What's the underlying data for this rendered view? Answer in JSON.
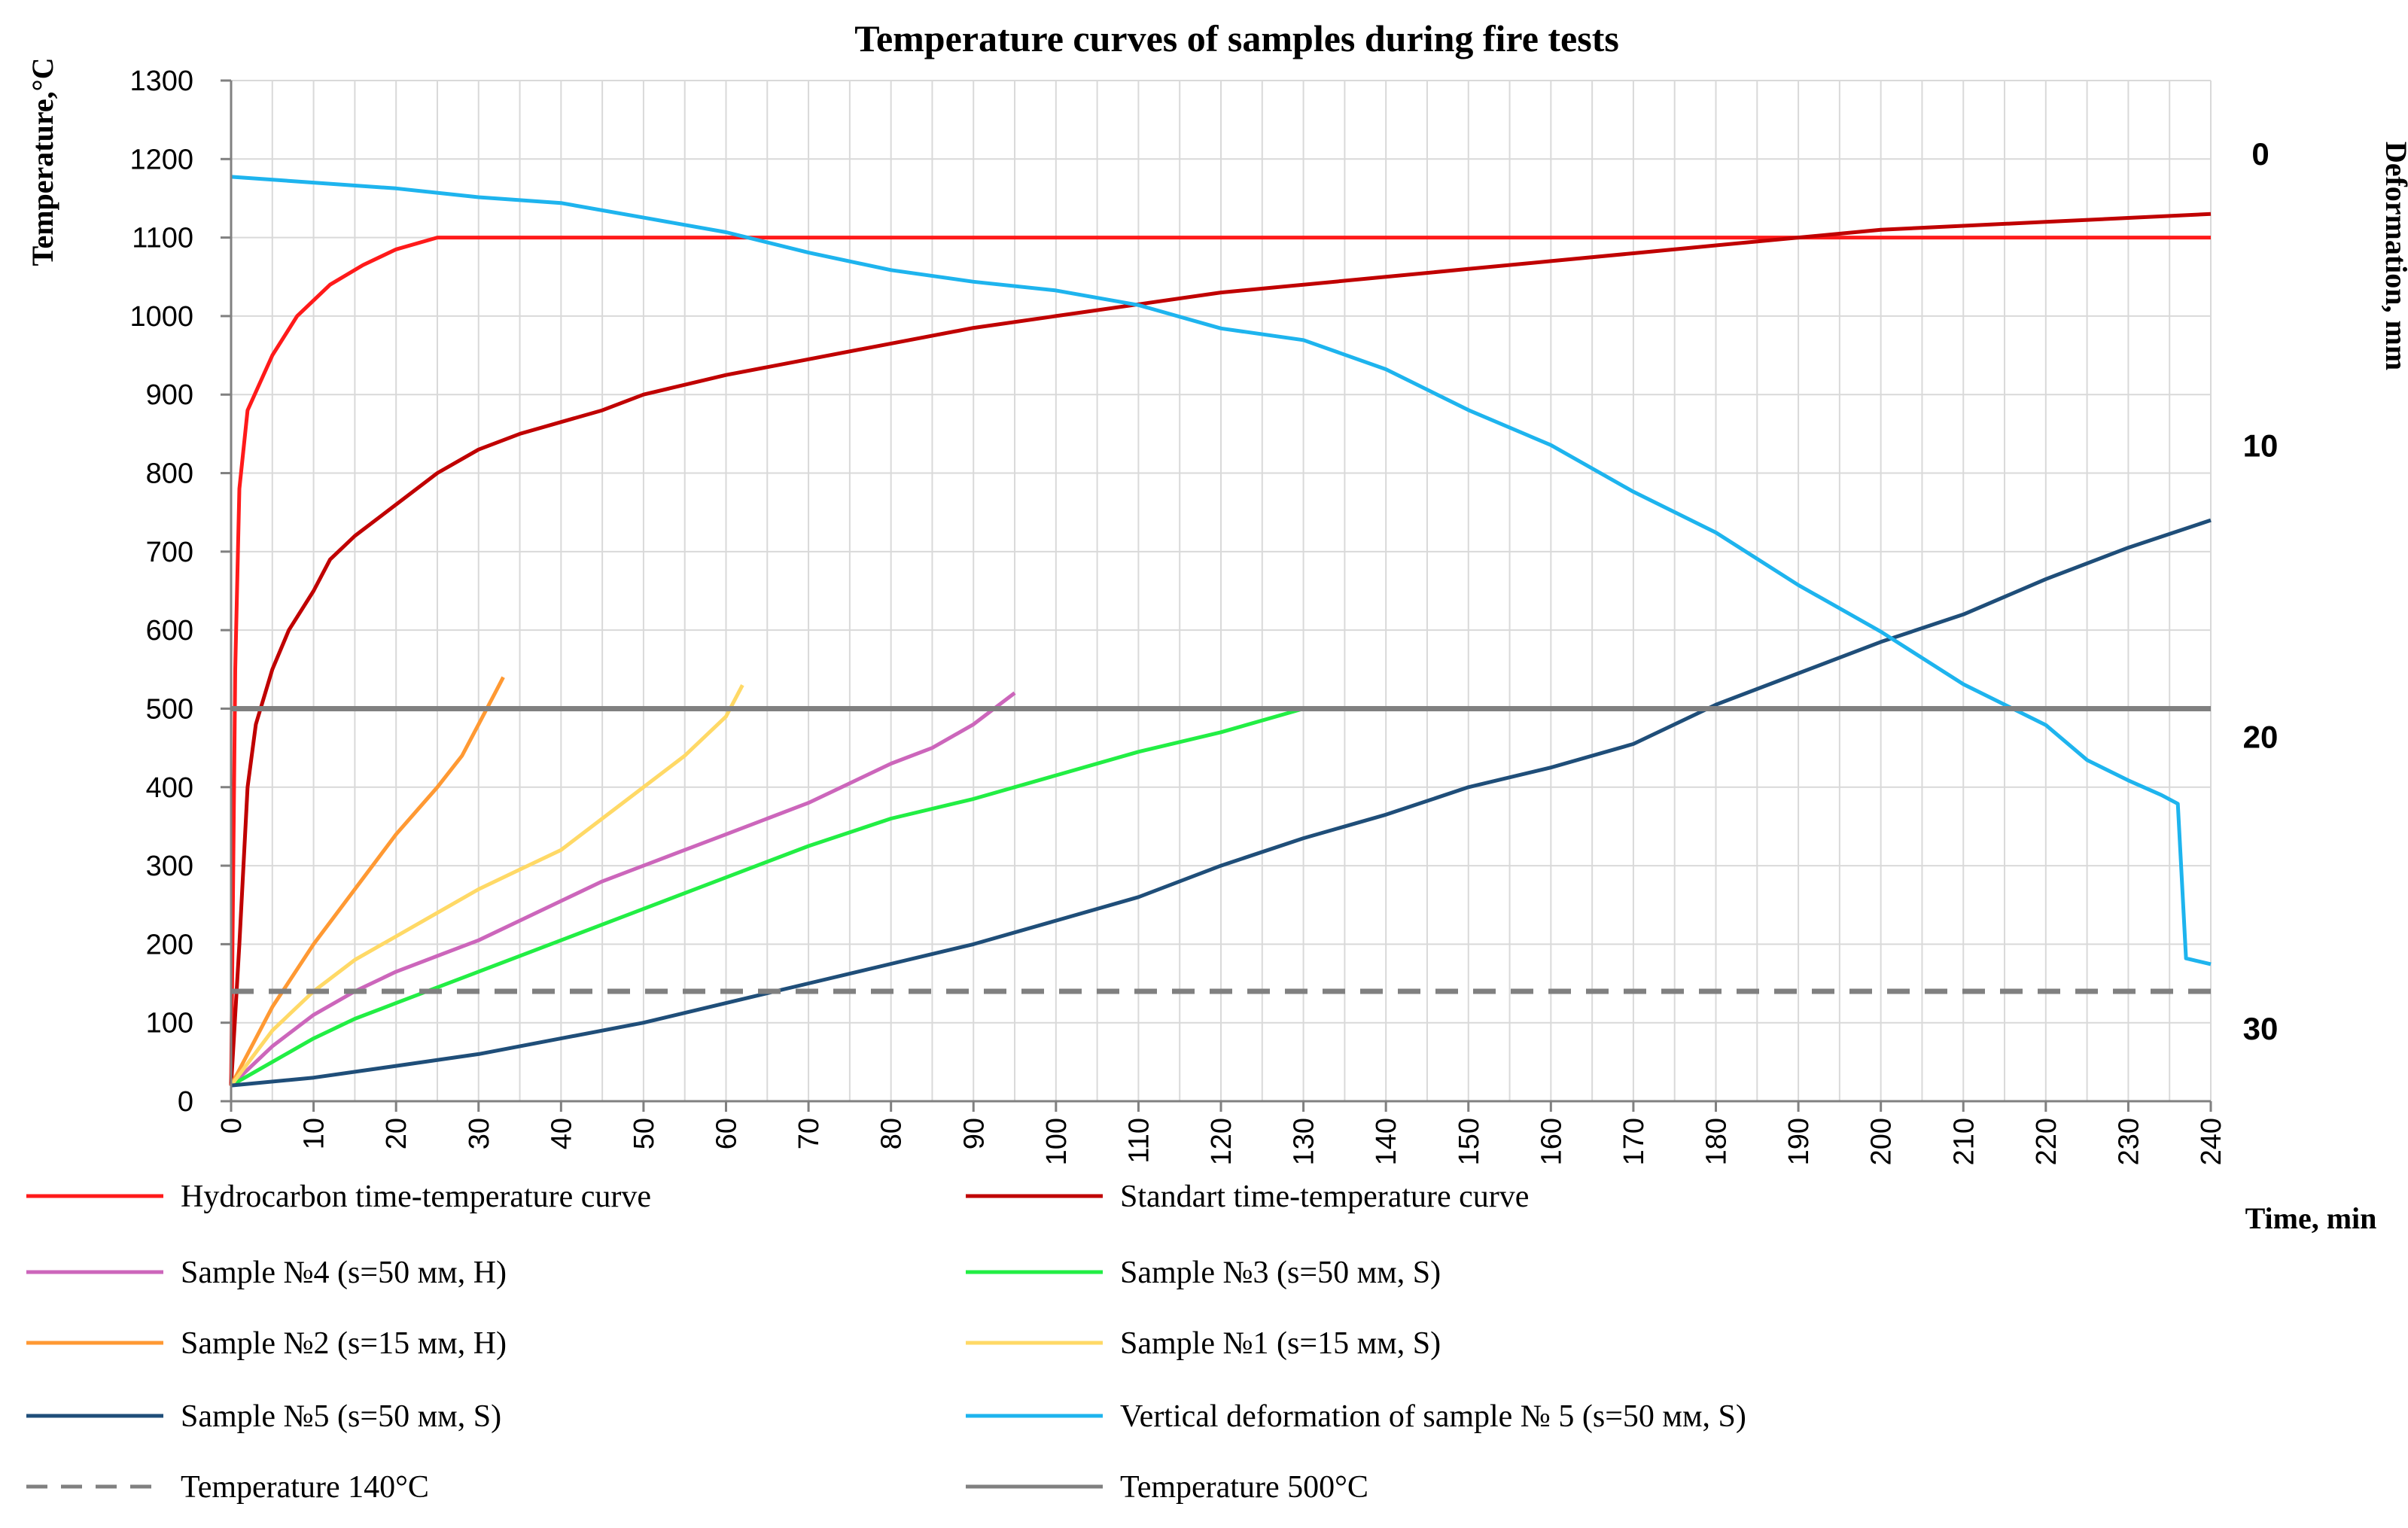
{
  "chart_data": {
    "type": "line",
    "title": "Temperature curves of samples during fire tests",
    "xlabel": "Time, min",
    "ylabel": "Temperature,°C",
    "y2label": "Deformation, mm",
    "xlim": [
      0,
      240
    ],
    "ylim": [
      0,
      1300
    ],
    "y2lim": [
      32.5,
      -2.5
    ],
    "grid": true,
    "legend_position": "bottom",
    "x_ticks": [
      "0",
      "10",
      "20",
      "30",
      "40",
      "50",
      "60",
      "70",
      "80",
      "90",
      "100",
      "110",
      "120",
      "130",
      "140",
      "150",
      "160",
      "170",
      "180",
      "190",
      "200",
      "210",
      "220",
      "230",
      "240"
    ],
    "y_ticks": [
      "0",
      "100",
      "200",
      "300",
      "400",
      "500",
      "600",
      "700",
      "800",
      "900",
      "1000",
      "1100",
      "1200",
      "1300"
    ],
    "y2_ticks": [
      "0",
      "10",
      "20",
      "30"
    ],
    "series": [
      {
        "name": "Hydrocarbon time-temperature curve",
        "color": "#ff1a1a",
        "axis": "left",
        "dash": false,
        "points": [
          [
            0,
            20
          ],
          [
            0.5,
            550
          ],
          [
            1,
            780
          ],
          [
            2,
            880
          ],
          [
            5,
            950
          ],
          [
            8,
            1000
          ],
          [
            12,
            1040
          ],
          [
            16,
            1065
          ],
          [
            20,
            1085
          ],
          [
            25,
            1100
          ],
          [
            240,
            1100
          ]
        ]
      },
      {
        "name": "Standart time-temperature curve",
        "color": "#c00000",
        "axis": "left",
        "dash": false,
        "points": [
          [
            0,
            20
          ],
          [
            1,
            200
          ],
          [
            2,
            400
          ],
          [
            3,
            480
          ],
          [
            5,
            550
          ],
          [
            7,
            600
          ],
          [
            10,
            650
          ],
          [
            12,
            690
          ],
          [
            15,
            720
          ],
          [
            20,
            760
          ],
          [
            25,
            800
          ],
          [
            30,
            830
          ],
          [
            35,
            850
          ],
          [
            40,
            865
          ],
          [
            45,
            880
          ],
          [
            50,
            900
          ],
          [
            60,
            925
          ],
          [
            70,
            945
          ],
          [
            80,
            965
          ],
          [
            90,
            985
          ],
          [
            100,
            1000
          ],
          [
            110,
            1015
          ],
          [
            120,
            1030
          ],
          [
            130,
            1040
          ],
          [
            140,
            1050
          ],
          [
            150,
            1060
          ],
          [
            160,
            1070
          ],
          [
            170,
            1080
          ],
          [
            180,
            1090
          ],
          [
            190,
            1100
          ],
          [
            200,
            1110
          ],
          [
            210,
            1115
          ],
          [
            220,
            1120
          ],
          [
            230,
            1125
          ],
          [
            240,
            1130
          ]
        ]
      },
      {
        "name": "Sample №4 (s=50 мм, H)",
        "color": "#cc66bb",
        "axis": "left",
        "dash": false,
        "points": [
          [
            0,
            20
          ],
          [
            5,
            70
          ],
          [
            10,
            110
          ],
          [
            15,
            140
          ],
          [
            20,
            165
          ],
          [
            25,
            185
          ],
          [
            30,
            205
          ],
          [
            35,
            230
          ],
          [
            40,
            255
          ],
          [
            45,
            280
          ],
          [
            50,
            300
          ],
          [
            55,
            320
          ],
          [
            60,
            340
          ],
          [
            65,
            360
          ],
          [
            70,
            380
          ],
          [
            75,
            405
          ],
          [
            80,
            430
          ],
          [
            85,
            450
          ],
          [
            90,
            480
          ],
          [
            95,
            520
          ]
        ]
      },
      {
        "name": "Sample №3 (s=50 мм, S)",
        "color": "#22ee44",
        "axis": "left",
        "dash": false,
        "points": [
          [
            0,
            20
          ],
          [
            5,
            50
          ],
          [
            10,
            80
          ],
          [
            15,
            105
          ],
          [
            20,
            125
          ],
          [
            30,
            165
          ],
          [
            40,
            205
          ],
          [
            50,
            245
          ],
          [
            60,
            285
          ],
          [
            70,
            325
          ],
          [
            80,
            360
          ],
          [
            90,
            385
          ],
          [
            100,
            415
          ],
          [
            110,
            445
          ],
          [
            120,
            470
          ],
          [
            130,
            500
          ]
        ]
      },
      {
        "name": "Sample №2 (s=15 мм, H)",
        "color": "#ff9933",
        "axis": "left",
        "dash": false,
        "points": [
          [
            0,
            20
          ],
          [
            5,
            120
          ],
          [
            10,
            200
          ],
          [
            15,
            270
          ],
          [
            20,
            340
          ],
          [
            25,
            400
          ],
          [
            28,
            440
          ],
          [
            30,
            480
          ],
          [
            32,
            520
          ],
          [
            33,
            540
          ]
        ]
      },
      {
        "name": "Sample №1 (s=15 мм, S)",
        "color": "#ffd966",
        "axis": "left",
        "dash": false,
        "points": [
          [
            0,
            20
          ],
          [
            5,
            90
          ],
          [
            10,
            140
          ],
          [
            15,
            180
          ],
          [
            20,
            210
          ],
          [
            25,
            240
          ],
          [
            30,
            270
          ],
          [
            35,
            295
          ],
          [
            40,
            320
          ],
          [
            45,
            360
          ],
          [
            50,
            400
          ],
          [
            55,
            440
          ],
          [
            60,
            490
          ],
          [
            62,
            530
          ]
        ]
      },
      {
        "name": "Sample №5 (s=50 мм, S)",
        "color": "#1f4e79",
        "axis": "left",
        "dash": false,
        "points": [
          [
            0,
            20
          ],
          [
            10,
            30
          ],
          [
            20,
            45
          ],
          [
            30,
            60
          ],
          [
            40,
            80
          ],
          [
            50,
            100
          ],
          [
            60,
            125
          ],
          [
            70,
            150
          ],
          [
            80,
            175
          ],
          [
            90,
            200
          ],
          [
            100,
            230
          ],
          [
            110,
            260
          ],
          [
            120,
            300
          ],
          [
            130,
            335
          ],
          [
            140,
            365
          ],
          [
            150,
            400
          ],
          [
            160,
            425
          ],
          [
            170,
            455
          ],
          [
            180,
            505
          ],
          [
            190,
            545
          ],
          [
            200,
            585
          ],
          [
            210,
            620
          ],
          [
            220,
            665
          ],
          [
            230,
            705
          ],
          [
            240,
            740
          ]
        ]
      },
      {
        "name": "Vertical deformation of sample № 5 (s=50 мм, S)",
        "color": "#1eb4ee",
        "axis": "right",
        "dash": false,
        "points": [
          [
            0,
            0.8
          ],
          [
            10,
            1.0
          ],
          [
            20,
            1.2
          ],
          [
            30,
            1.5
          ],
          [
            40,
            1.7
          ],
          [
            50,
            2.2
          ],
          [
            60,
            2.7
          ],
          [
            70,
            3.4
          ],
          [
            80,
            4.0
          ],
          [
            90,
            4.4
          ],
          [
            100,
            4.7
          ],
          [
            110,
            5.2
          ],
          [
            120,
            6.0
          ],
          [
            130,
            6.4
          ],
          [
            140,
            7.4
          ],
          [
            150,
            8.8
          ],
          [
            160,
            10.0
          ],
          [
            170,
            11.6
          ],
          [
            180,
            13.0
          ],
          [
            190,
            14.8
          ],
          [
            200,
            16.4
          ],
          [
            210,
            18.2
          ],
          [
            220,
            19.6
          ],
          [
            225,
            20.8
          ],
          [
            230,
            21.5
          ],
          [
            234,
            22.0
          ],
          [
            236,
            22.3
          ],
          [
            237,
            27.6
          ],
          [
            240,
            27.8
          ]
        ]
      },
      {
        "name": "Temperature 140°C",
        "color": "#808080",
        "axis": "left",
        "dash": true,
        "points": [
          [
            0,
            140
          ],
          [
            240,
            140
          ]
        ]
      },
      {
        "name": "Temperature 500°C",
        "color": "#808080",
        "axis": "left",
        "dash": false,
        "points": [
          [
            0,
            500
          ],
          [
            240,
            500
          ]
        ]
      }
    ]
  }
}
